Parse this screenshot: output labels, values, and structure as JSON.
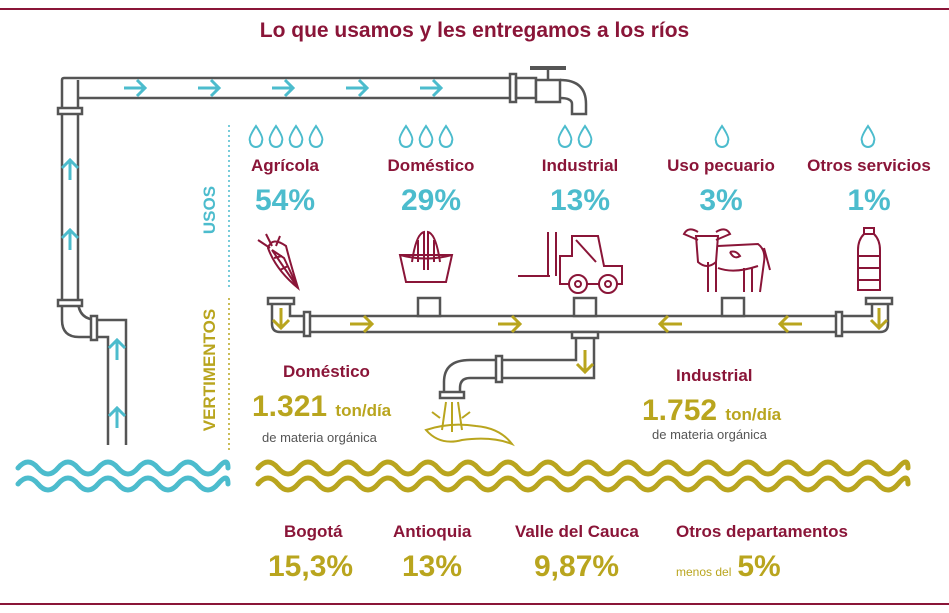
{
  "title": "Lo que usamos y les entregamos a los ríos",
  "side_labels": {
    "usos": "USOS",
    "vertimentos": "VERTIMENTOS"
  },
  "usos": [
    {
      "label": "Agrícola",
      "pct": "54%",
      "drops": 4,
      "icon": "carrot-icon"
    },
    {
      "label": "Doméstico",
      "pct": "29%",
      "drops": 3,
      "icon": "washbasin-hands-icon"
    },
    {
      "label": "Industrial",
      "pct": "13%",
      "drops": 2,
      "icon": "forklift-icon"
    },
    {
      "label": "Uso pecuario",
      "pct": "3%",
      "drops": 1,
      "icon": "cow-icon"
    },
    {
      "label": "Otros servicios",
      "pct": "1%",
      "drops": 1,
      "icon": "water-bottle-icon"
    }
  ],
  "vertimentos": {
    "domestico": {
      "label": "Doméstico",
      "value": "1.321",
      "unit": "ton/día",
      "sub": "de materia orgánica"
    },
    "industrial": {
      "label": "Industrial",
      "value": "1.752",
      "unit": "ton/día",
      "sub": "de materia orgánica"
    }
  },
  "departamentos": [
    {
      "label": "Bogotá",
      "pct": "15,3%",
      "prefix": ""
    },
    {
      "label": "Antioquia",
      "pct": "13%",
      "prefix": ""
    },
    {
      "label": "Valle del Cauca",
      "pct": "9,87%",
      "prefix": ""
    },
    {
      "label": "Otros departamentos",
      "pct": "5%",
      "prefix": "menos del"
    }
  ],
  "colors": {
    "maroon": "#8a1538",
    "teal": "#4cbccd",
    "olive": "#b9a51e",
    "pipe": "#555555"
  }
}
